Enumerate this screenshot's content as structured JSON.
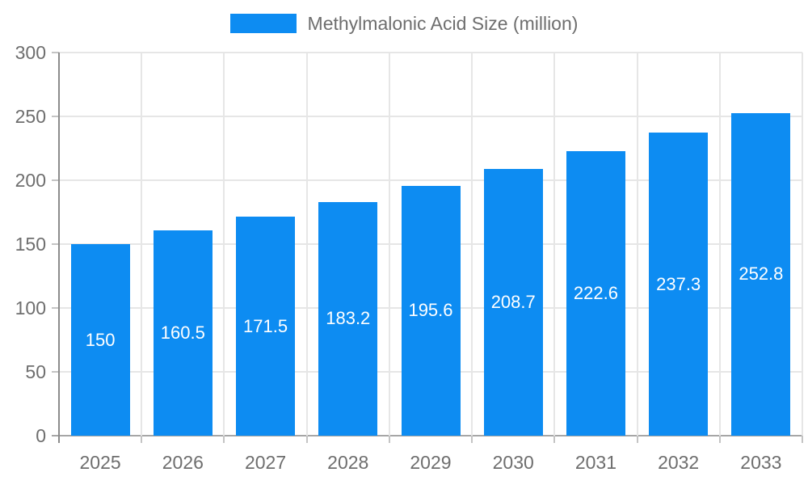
{
  "page": {
    "background": "#ffffff"
  },
  "legend": {
    "label": "Methylmalonic Acid Size (million)"
  },
  "chart_data": {
    "type": "bar",
    "title": "Methylmalonic Acid Size (million)",
    "xlabel": "",
    "ylabel": "",
    "categories": [
      "2025",
      "2026",
      "2027",
      "2028",
      "2029",
      "2030",
      "2031",
      "2032",
      "2033"
    ],
    "values": [
      150,
      160.5,
      171.5,
      183.2,
      195.6,
      208.7,
      222.6,
      237.3,
      252.8
    ],
    "value_labels": [
      "150",
      "160.5",
      "171.5",
      "183.2",
      "195.6",
      "208.7",
      "222.6",
      "237.3",
      "252.8"
    ],
    "ylim": [
      0,
      300
    ],
    "y_ticks": [
      0,
      50,
      100,
      150,
      200,
      250,
      300
    ],
    "grid": true,
    "legend_position": "top",
    "value_labels_position": "center-of-bar",
    "colors": {
      "bar": "#0d8cf2",
      "value_label": "#ffffff",
      "axis_text": "#6e6e6e",
      "grid_line": "#e6e6e6",
      "y_axis_line": "#8c8c8c",
      "x_axis_line": "#a6a6a6",
      "tick": "#c4c4c4"
    }
  }
}
